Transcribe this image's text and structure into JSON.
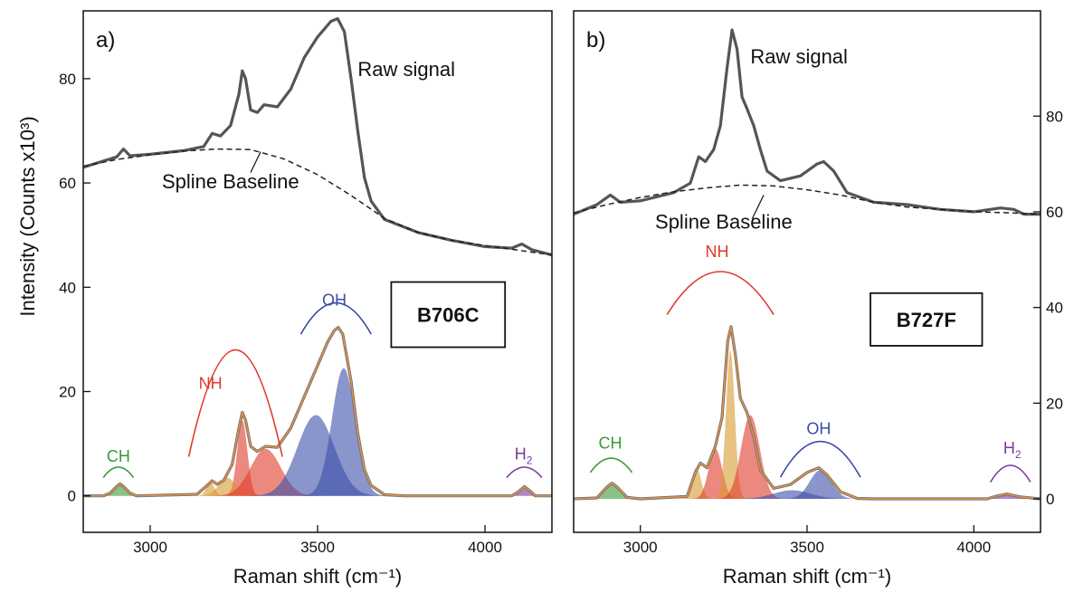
{
  "ylabel": "Intensity (Counts x10³)",
  "colors": {
    "raw": "#555555",
    "fit": "#e8913c",
    "baseline": "#222222",
    "CH": "#3a9a3a",
    "NH": "#e03a2a",
    "OH": "#3b4ea8",
    "H2": "#7a3aa0"
  },
  "chart_data": [
    {
      "type": "line",
      "panel_label": "a)",
      "sample": "B706C",
      "xlabel": "Raman shift (cm⁻¹)",
      "xlim": [
        2800,
        4200
      ],
      "ylim": [
        -7,
        93
      ],
      "xticks": [
        3000,
        3500,
        4000
      ],
      "yticks": [
        0,
        20,
        40,
        60,
        80
      ],
      "ytick_side": "left",
      "annotations": {
        "raw": "Raw signal",
        "baseline": "Spline Baseline"
      },
      "series": [
        {
          "key": "raw",
          "points": [
            [
              2800,
              63.0
            ],
            [
              2860,
              64.2
            ],
            [
              2900,
              65.0
            ],
            [
              2920,
              66.5
            ],
            [
              2940,
              65.2
            ],
            [
              3000,
              65.5
            ],
            [
              3100,
              66.2
            ],
            [
              3160,
              67.0
            ],
            [
              3185,
              69.5
            ],
            [
              3210,
              69.0
            ],
            [
              3240,
              71.0
            ],
            [
              3265,
              77.0
            ],
            [
              3275,
              81.5
            ],
            [
              3285,
              80.0
            ],
            [
              3300,
              74.0
            ],
            [
              3320,
              73.5
            ],
            [
              3340,
              75.0
            ],
            [
              3380,
              74.6
            ],
            [
              3420,
              78.0
            ],
            [
              3460,
              84.0
            ],
            [
              3500,
              88.0
            ],
            [
              3540,
              91.0
            ],
            [
              3560,
              91.5
            ],
            [
              3580,
              89.0
            ],
            [
              3600,
              80.0
            ],
            [
              3620,
              70.0
            ],
            [
              3640,
              61.0
            ],
            [
              3660,
              56.5
            ],
            [
              3700,
              53.0
            ],
            [
              3800,
              50.5
            ],
            [
              3900,
              49.0
            ],
            [
              4000,
              47.8
            ],
            [
              4080,
              47.5
            ],
            [
              4110,
              48.3
            ],
            [
              4140,
              47.2
            ],
            [
              4200,
              46.2
            ]
          ]
        },
        {
          "key": "baseline",
          "points": [
            [
              2800,
              63.2
            ],
            [
              2900,
              64.5
            ],
            [
              3000,
              65.4
            ],
            [
              3100,
              66.1
            ],
            [
              3200,
              66.5
            ],
            [
              3300,
              66.4
            ],
            [
              3400,
              64.6
            ],
            [
              3500,
              61.6
            ],
            [
              3600,
              57.6
            ],
            [
              3700,
              53.2
            ],
            [
              3800,
              50.5
            ],
            [
              3900,
              49.0
            ],
            [
              4000,
              48.0
            ],
            [
              4100,
              47.1
            ],
            [
              4200,
              46.2
            ]
          ]
        },
        {
          "key": "fit",
          "points": [
            [
              2800,
              0.0
            ],
            [
              2860,
              0.0
            ],
            [
              2880,
              0.5
            ],
            [
              2900,
              1.8
            ],
            [
              2910,
              2.3
            ],
            [
              2920,
              1.8
            ],
            [
              2940,
              0.5
            ],
            [
              2960,
              0.0
            ],
            [
              3140,
              0.3
            ],
            [
              3170,
              2.0
            ],
            [
              3185,
              2.9
            ],
            [
              3200,
              2.2
            ],
            [
              3220,
              3.0
            ],
            [
              3245,
              6.0
            ],
            [
              3265,
              13.0
            ],
            [
              3275,
              16.0
            ],
            [
              3285,
              14.5
            ],
            [
              3300,
              9.5
            ],
            [
              3320,
              8.5
            ],
            [
              3345,
              9.5
            ],
            [
              3380,
              9.3
            ],
            [
              3420,
              13.0
            ],
            [
              3460,
              19.0
            ],
            [
              3500,
              25.0
            ],
            [
              3530,
              29.5
            ],
            [
              3550,
              31.7
            ],
            [
              3562,
              32.3
            ],
            [
              3575,
              31.0
            ],
            [
              3600,
              22.0
            ],
            [
              3620,
              12.0
            ],
            [
              3640,
              5.0
            ],
            [
              3660,
              2.0
            ],
            [
              3700,
              0.2
            ],
            [
              3760,
              0.0
            ],
            [
              4080,
              0.0
            ],
            [
              4100,
              0.8
            ],
            [
              4118,
              1.8
            ],
            [
              4135,
              0.9
            ],
            [
              4150,
              0.0
            ],
            [
              4200,
              0.0
            ]
          ]
        }
      ],
      "bands": [
        {
          "group": "CH",
          "center": 2910,
          "height": 2.2,
          "width": 20
        },
        {
          "group": "NH",
          "center": 3180,
          "height": 2.6,
          "width": 12
        },
        {
          "group": "NH",
          "center": 3275,
          "height": 14.5,
          "width": 15
        },
        {
          "group": "NH",
          "center": 3230,
          "height": 3.5,
          "width": 25
        },
        {
          "group": "NH",
          "center": 3345,
          "height": 9.0,
          "width": 45
        },
        {
          "group": "OH",
          "center": 3495,
          "height": 15.5,
          "width": 55
        },
        {
          "group": "OH",
          "center": 3578,
          "height": 24.5,
          "width": 35
        },
        {
          "group": "H2",
          "center": 4120,
          "height": 1.8,
          "width": 14
        }
      ],
      "groups": [
        {
          "name": "CH",
          "label": "CH",
          "label_x": 2905,
          "label_y": 6.5,
          "arc_from": 2860,
          "arc_to": 2950,
          "arc_y": 3.5,
          "arc_h": 2.0
        },
        {
          "name": "NH",
          "label": "NH",
          "label_x": 3180,
          "label_y": 20.5,
          "arc_from": 3115,
          "arc_to": 3395,
          "arc_y": 7.5,
          "arc_h": 20.5
        },
        {
          "name": "OH",
          "label": "OH",
          "label_x": 3550,
          "label_y": 36.5,
          "arc_from": 3450,
          "arc_to": 3660,
          "arc_y": 31.0,
          "arc_h": 6.0
        },
        {
          "name": "H2",
          "label": "H",
          "sub": "2",
          "label_x": 4115,
          "label_y": 7.0,
          "arc_from": 4065,
          "arc_to": 4170,
          "arc_y": 3.5,
          "arc_h": 2.0
        }
      ],
      "raw_label_pos": [
        3620,
        80.5
      ],
      "baseline_label_pos": [
        3240,
        59.0
      ],
      "baseline_pointer": [
        [
          3330,
          66.0
        ],
        [
          3300,
          62.0
        ]
      ],
      "sample_box": [
        3720,
        41,
        4060,
        28.5
      ]
    },
    {
      "type": "line",
      "panel_label": "b)",
      "sample": "B727F",
      "xlabel": "Raman shift (cm⁻¹)",
      "xlim": [
        2800,
        4200
      ],
      "ylim": [
        -7,
        102
      ],
      "xticks": [
        3000,
        3500,
        4000
      ],
      "yticks": [
        0,
        20,
        40,
        60,
        80
      ],
      "ytick_side": "right",
      "annotations": {
        "raw": "Raw signal",
        "baseline": "Spline Baseline"
      },
      "series": [
        {
          "key": "raw",
          "points": [
            [
              2800,
              59.5
            ],
            [
              2870,
              61.5
            ],
            [
              2910,
              63.5
            ],
            [
              2940,
              62.0
            ],
            [
              3000,
              62.3
            ],
            [
              3100,
              64.0
            ],
            [
              3150,
              66.0
            ],
            [
              3175,
              71.5
            ],
            [
              3195,
              70.5
            ],
            [
              3220,
              73.0
            ],
            [
              3240,
              78.0
            ],
            [
              3260,
              90.0
            ],
            [
              3275,
              98.0
            ],
            [
              3290,
              94.0
            ],
            [
              3305,
              84.0
            ],
            [
              3320,
              81.5
            ],
            [
              3340,
              78.0
            ],
            [
              3360,
              73.0
            ],
            [
              3380,
              68.5
            ],
            [
              3420,
              66.5
            ],
            [
              3480,
              67.5
            ],
            [
              3530,
              70.0
            ],
            [
              3550,
              70.5
            ],
            [
              3580,
              68.5
            ],
            [
              3620,
              64.0
            ],
            [
              3700,
              62.0
            ],
            [
              3800,
              61.5
            ],
            [
              3900,
              60.5
            ],
            [
              4000,
              60.0
            ],
            [
              4080,
              60.8
            ],
            [
              4120,
              60.5
            ],
            [
              4150,
              59.5
            ],
            [
              4200,
              59.5
            ]
          ]
        },
        {
          "key": "baseline",
          "points": [
            [
              2800,
              59.8
            ],
            [
              2900,
              61.5
            ],
            [
              3000,
              63.0
            ],
            [
              3100,
              64.2
            ],
            [
              3200,
              65.0
            ],
            [
              3300,
              65.6
            ],
            [
              3400,
              65.4
            ],
            [
              3500,
              64.6
            ],
            [
              3600,
              63.5
            ],
            [
              3700,
              62.0
            ],
            [
              3800,
              61.0
            ],
            [
              3900,
              60.5
            ],
            [
              4000,
              60.0
            ],
            [
              4100,
              59.8
            ],
            [
              4200,
              59.5
            ]
          ]
        },
        {
          "key": "fit",
          "points": [
            [
              2800,
              0.0
            ],
            [
              2870,
              0.2
            ],
            [
              2900,
              2.5
            ],
            [
              2915,
              3.3
            ],
            [
              2930,
              2.5
            ],
            [
              2960,
              0.3
            ],
            [
              3000,
              0.0
            ],
            [
              3140,
              0.5
            ],
            [
              3165,
              5.5
            ],
            [
              3180,
              7.5
            ],
            [
              3200,
              6.5
            ],
            [
              3225,
              11.0
            ],
            [
              3245,
              17.0
            ],
            [
              3262,
              33.0
            ],
            [
              3272,
              36.0
            ],
            [
              3285,
              30.0
            ],
            [
              3300,
              21.0
            ],
            [
              3320,
              18.0
            ],
            [
              3340,
              13.0
            ],
            [
              3360,
              6.0
            ],
            [
              3400,
              2.2
            ],
            [
              3450,
              3.0
            ],
            [
              3500,
              5.5
            ],
            [
              3535,
              6.5
            ],
            [
              3560,
              5.0
            ],
            [
              3600,
              1.5
            ],
            [
              3650,
              0.1
            ],
            [
              3700,
              0.0
            ],
            [
              4040,
              0.0
            ],
            [
              4070,
              0.6
            ],
            [
              4100,
              1.0
            ],
            [
              4140,
              0.4
            ],
            [
              4200,
              0.0
            ]
          ]
        }
      ],
      "bands": [
        {
          "group": "CH",
          "center": 2915,
          "height": 3.0,
          "width": 20
        },
        {
          "group": "NH",
          "center": 3168,
          "height": 6.5,
          "width": 14
        },
        {
          "group": "NH",
          "center": 3225,
          "height": 10.5,
          "width": 20
        },
        {
          "group": "NH",
          "center": 3270,
          "height": 31.0,
          "width": 13
        },
        {
          "group": "NH",
          "center": 3330,
          "height": 17.5,
          "width": 28
        },
        {
          "group": "OH",
          "center": 3455,
          "height": 1.8,
          "width": 55
        },
        {
          "group": "OH",
          "center": 3540,
          "height": 6.0,
          "width": 32
        },
        {
          "group": "H2",
          "center": 4100,
          "height": 1.0,
          "width": 30
        }
      ],
      "groups": [
        {
          "name": "CH",
          "label": "CH",
          "label_x": 2910,
          "label_y": 10.5,
          "arc_from": 2850,
          "arc_to": 2975,
          "arc_y": 5.5,
          "arc_h": 3.0
        },
        {
          "name": "NH",
          "label": "NH",
          "label_x": 3230,
          "label_y": 50.5,
          "arc_from": 3080,
          "arc_to": 3400,
          "arc_y": 38.5,
          "arc_h": 9.0
        },
        {
          "name": "OH",
          "label": "OH",
          "label_x": 3535,
          "label_y": 13.5,
          "arc_from": 3420,
          "arc_to": 3660,
          "arc_y": 4.5,
          "arc_h": 7.5
        },
        {
          "name": "H2",
          "label": "H",
          "sub": "2",
          "label_x": 4115,
          "label_y": 9.5,
          "arc_from": 4050,
          "arc_to": 4170,
          "arc_y": 3.5,
          "arc_h": 3.5
        }
      ],
      "raw_label_pos": [
        3330,
        91.0
      ],
      "baseline_label_pos": [
        3250,
        56.5
      ],
      "baseline_pointer": [
        [
          3370,
          63.5
        ],
        [
          3335,
          58.5
        ]
      ],
      "sample_box": [
        3690,
        43,
        4025,
        32
      ]
    }
  ]
}
